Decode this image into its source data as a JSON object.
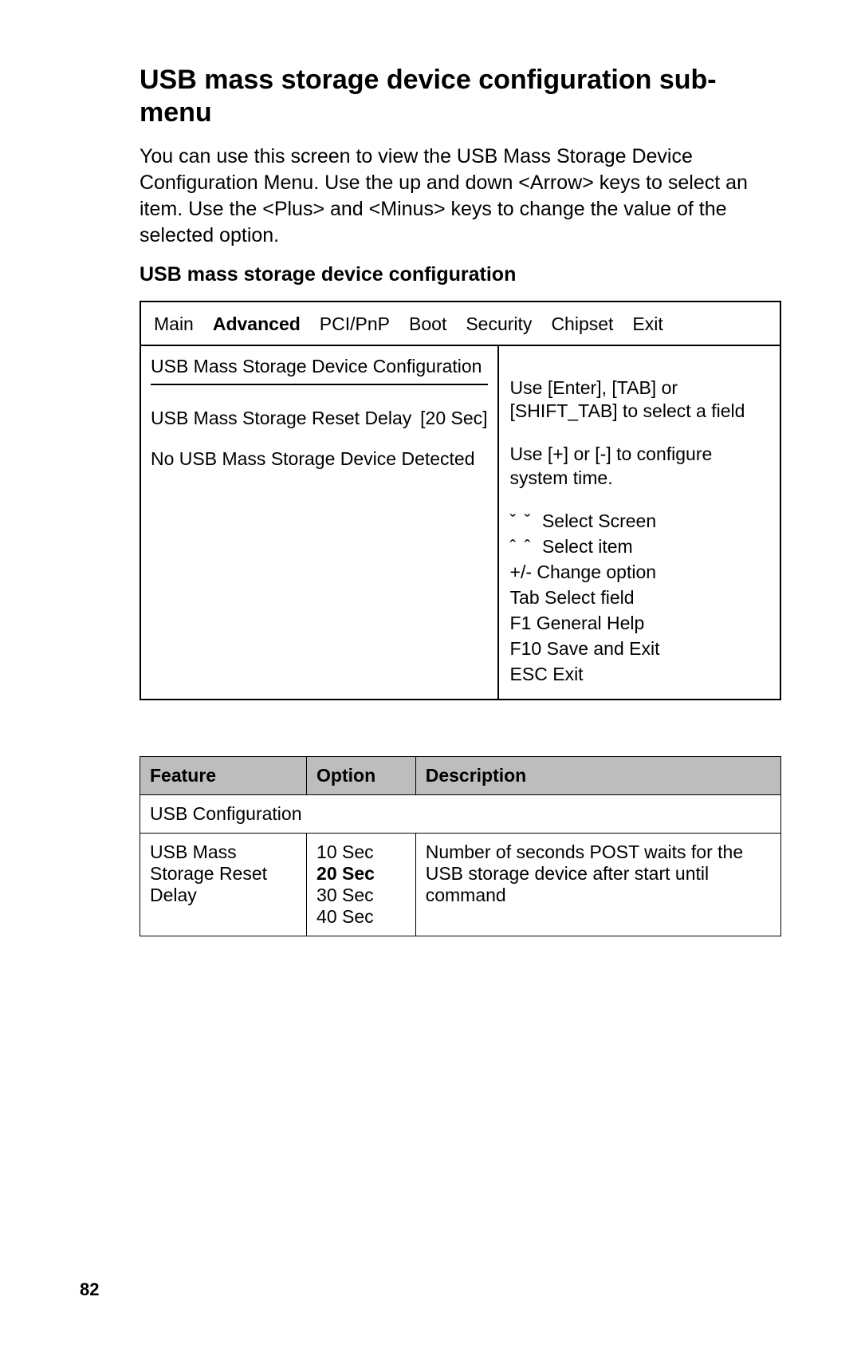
{
  "title": "USB mass storage device configuration sub-menu",
  "intro": "You can use this screen to view the USB Mass Storage Device Configuration Menu. Use the up and down <Arrow> keys to select an item. Use the <Plus> and <Minus> keys to change the value of the selected option.",
  "subhead": "USB mass storage device configuration",
  "page_number": "82",
  "bios": {
    "tabs": [
      {
        "label": "Main",
        "active": false
      },
      {
        "label": "Advanced",
        "active": true
      },
      {
        "label": "PCI/PnP",
        "active": false
      },
      {
        "label": "Boot",
        "active": false
      },
      {
        "label": "Security",
        "active": false
      },
      {
        "label": "Chipset",
        "active": false
      },
      {
        "label": "Exit",
        "active": false
      }
    ],
    "left_title": "USB Mass Storage Device Configuration",
    "reset_delay_label": "USB Mass Storage Reset Delay",
    "reset_delay_value": "[20 Sec]",
    "no_device": "No USB Mass Storage Device Detected",
    "help1": "Use [Enter], [TAB] or [SHIFT_TAB] to select a field",
    "help2": "Use [+] or [-] to configure system time.",
    "hints": {
      "lr": "ˇ ˇ",
      "lr_label": "Select Screen",
      "ud": "ˆ ˆ",
      "ud_label": "Select item",
      "pm": "+/-  Change option",
      "tab": "Tab  Select field",
      "f1": "F1  General Help",
      "f10": "F10  Save and Exit",
      "esc": "ESC Exit"
    }
  },
  "table": {
    "headers": {
      "feature": "Feature",
      "option": "Option",
      "description": "Description"
    },
    "row_span": {
      "feature": "USB Configuration"
    },
    "row": {
      "feature": "USB Mass Storage Reset Delay",
      "options": [
        {
          "text": "10 Sec",
          "bold": false
        },
        {
          "text": "20 Sec",
          "bold": true
        },
        {
          "text": "30 Sec",
          "bold": false
        },
        {
          "text": "40 Sec",
          "bold": false
        }
      ],
      "description": "Number of seconds POST waits for the USB storage device after start until command"
    }
  },
  "colors": {
    "background": "#ffffff",
    "text": "#000000",
    "table_header_bg": "#bdbdbd",
    "border": "#000000"
  },
  "typography": {
    "title_fontsize": 34,
    "body_fontsize": 25,
    "bios_fontsize": 23,
    "table_fontsize": 23,
    "pagenum_fontsize": 22
  }
}
